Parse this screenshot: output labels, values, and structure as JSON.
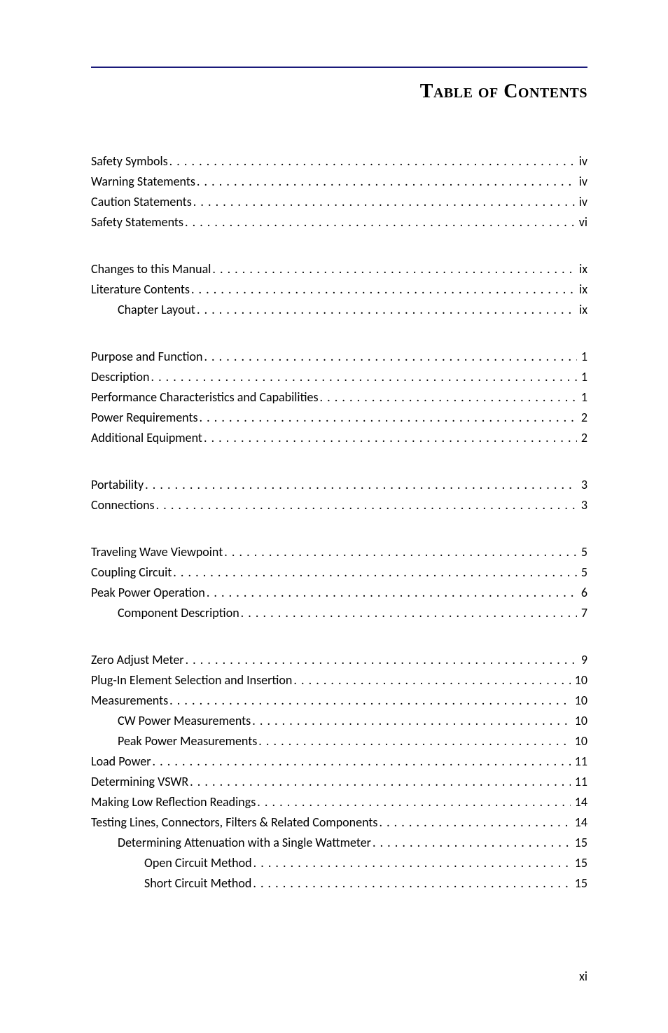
{
  "title": "Table of Contents",
  "page_number": "xi",
  "colors": {
    "rule": "#1a1a7a",
    "text": "#000000",
    "background": "#ffffff"
  },
  "typography": {
    "title_family": "Copperplate",
    "title_size_pt": 22,
    "body_size_pt": 13
  },
  "sections": [
    {
      "entries": [
        {
          "label": "Safety Symbols",
          "page": "iv",
          "indent": 0
        },
        {
          "label": "Warning Statements",
          "page": "iv",
          "indent": 0
        },
        {
          "label": "Caution Statements",
          "page": "iv",
          "indent": 0
        },
        {
          "label": "Safety Statements",
          "page": "vi",
          "indent": 0
        }
      ]
    },
    {
      "entries": [
        {
          "label": "Changes to this Manual",
          "page": "ix",
          "indent": 0
        },
        {
          "label": "Literature Contents",
          "page": "ix",
          "indent": 0
        },
        {
          "label": "Chapter Layout",
          "page": "ix",
          "indent": 1
        }
      ]
    },
    {
      "entries": [
        {
          "label": "Purpose and Function",
          "page": "1",
          "indent": 0
        },
        {
          "label": "Description",
          "page": "1",
          "indent": 0
        },
        {
          "label": "Performance Characteristics and Capabilities",
          "page": "1",
          "indent": 0
        },
        {
          "label": "Power Requirements",
          "page": "2",
          "indent": 0
        },
        {
          "label": "Additional Equipment",
          "page": "2",
          "indent": 0
        }
      ]
    },
    {
      "entries": [
        {
          "label": "Portability",
          "page": "3",
          "indent": 0
        },
        {
          "label": "Connections",
          "page": "3",
          "indent": 0
        }
      ]
    },
    {
      "entries": [
        {
          "label": "Traveling Wave Viewpoint",
          "page": "5",
          "indent": 0
        },
        {
          "label": "Coupling Circuit",
          "page": "5",
          "indent": 0
        },
        {
          "label": "Peak Power Operation",
          "page": "6",
          "indent": 0
        },
        {
          "label": "Component Description",
          "page": "7",
          "indent": 1
        }
      ]
    },
    {
      "entries": [
        {
          "label": "Zero Adjust Meter",
          "page": "9",
          "indent": 0
        },
        {
          "label": "Plug-In Element Selection and Insertion",
          "page": "10",
          "indent": 0
        },
        {
          "label": "Measurements",
          "page": "10",
          "indent": 0
        },
        {
          "label": "CW Power Measurements",
          "page": "10",
          "indent": 1
        },
        {
          "label": "Peak Power Measurements",
          "page": "10",
          "indent": 1
        },
        {
          "label": "Load Power",
          "page": "11",
          "indent": 0
        },
        {
          "label": "Determining VSWR",
          "page": "11",
          "indent": 0
        },
        {
          "label": "Making Low Reflection Readings",
          "page": "14",
          "indent": 0
        },
        {
          "label": "Testing Lines, Connectors, Filters & Related Components",
          "page": "14",
          "indent": 0
        },
        {
          "label": "Determining Attenuation with a Single Wattmeter",
          "page": "15",
          "indent": 1
        },
        {
          "label": "Open Circuit Method",
          "page": "15",
          "indent": 2
        },
        {
          "label": "Short Circuit Method",
          "page": "15",
          "indent": 2
        }
      ]
    }
  ]
}
